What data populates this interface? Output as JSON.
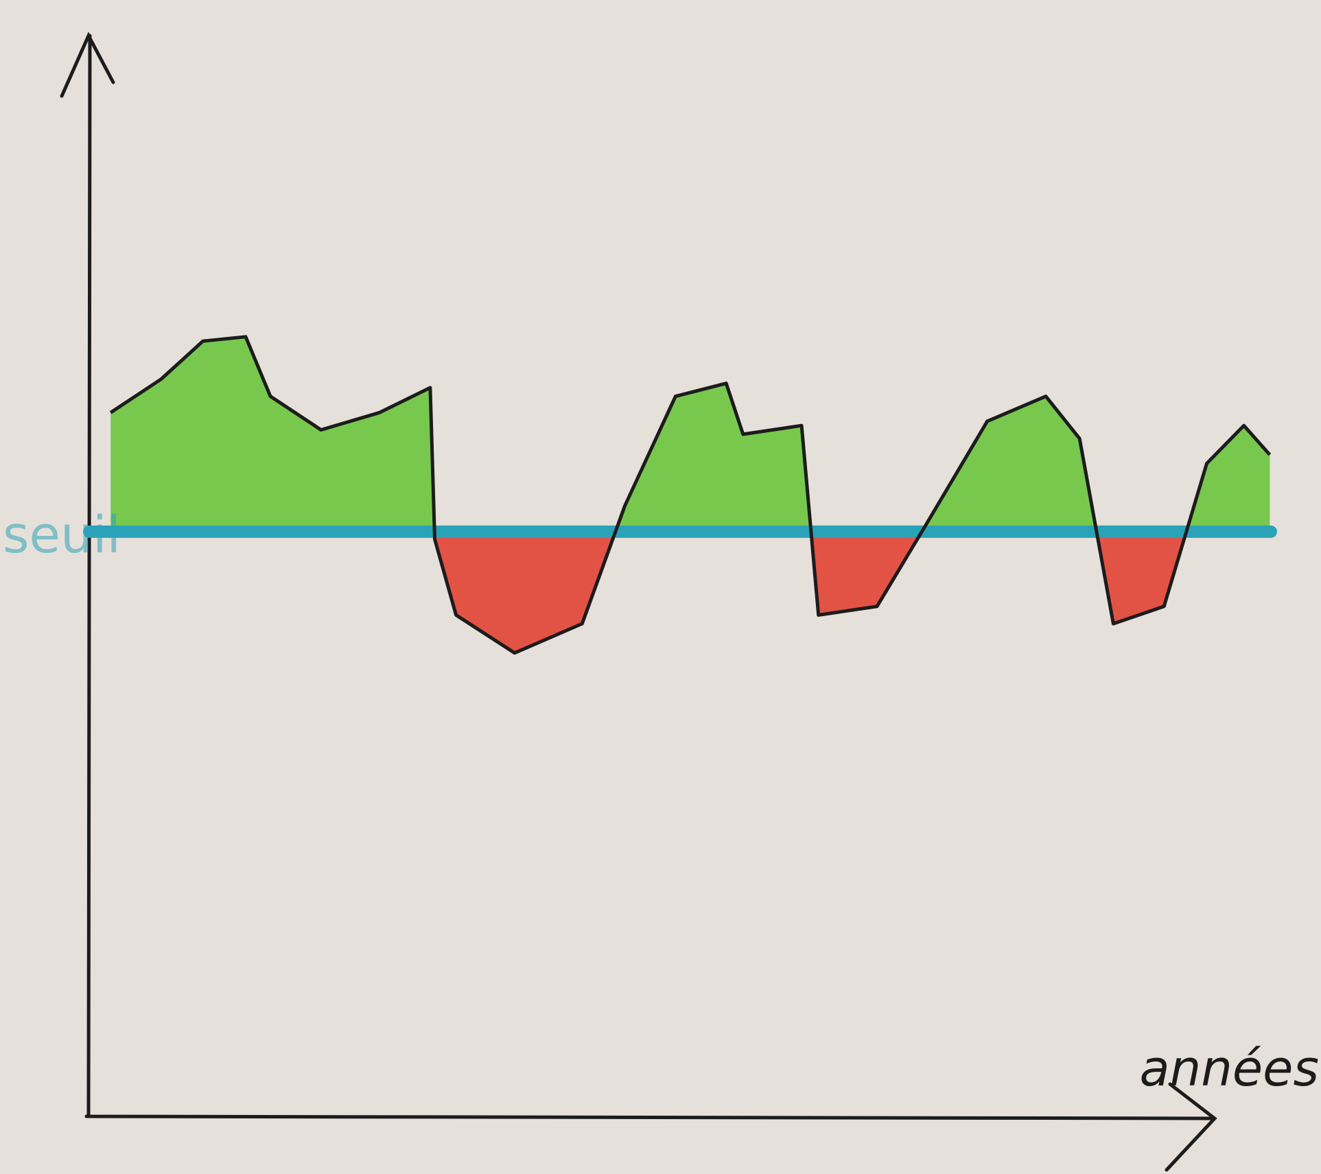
{
  "chart_data": {
    "type": "line",
    "x_label": "années",
    "x": [
      1.9,
      6.4,
      10.1,
      13.9,
      16.1,
      20.6,
      25.8,
      30.3,
      30.7,
      32.6,
      37.8,
      43.8,
      47.6,
      52.1,
      56.6,
      58.1,
      63.3,
      64.8,
      70.0,
      74.5,
      79.8,
      85.0,
      88.0,
      91.0,
      95.5,
      99.3,
      102.6,
      104.9
    ],
    "series": [
      {
        "color": "#1c1c1c",
        "values": [
          65.0,
          68.1,
          71.6,
          72.0,
          66.5,
          63.4,
          65.0,
          67.3,
          53.3,
          46.3,
          42.8,
          45.5,
          56.4,
          66.5,
          67.7,
          63.0,
          63.8,
          46.3,
          47.1,
          54.9,
          64.2,
          66.5,
          62.6,
          45.5,
          47.1,
          60.3,
          63.8,
          61.1
        ]
      }
    ],
    "threshold": {
      "label": "seuil",
      "value": 54,
      "color": "#2aa3b8"
    },
    "above_color": "#5cc22a",
    "below_color": "#e0392b",
    "xlim": [
      0,
      105
    ],
    "ylim": [
      0,
      100
    ]
  }
}
